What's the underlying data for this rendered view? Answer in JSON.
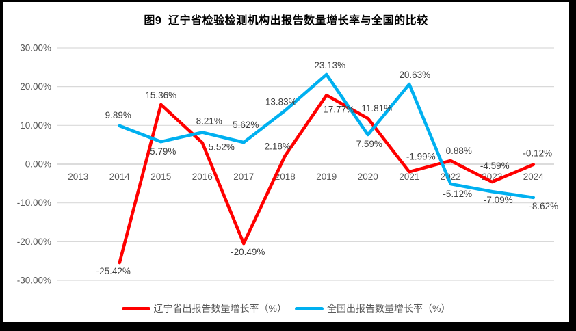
{
  "chart_data": {
    "type": "line",
    "title": "图9  辽宁省检验检测机构出报告数量增长率与全国的比较",
    "categories": [
      "2013",
      "2014",
      "2015",
      "2016",
      "2017",
      "2018",
      "2019",
      "2020",
      "2021",
      "2022",
      "2023",
      "2024"
    ],
    "y_axis": {
      "min": -30,
      "max": 30,
      "tick_step": 10,
      "ticks": [
        30,
        20,
        10,
        0,
        -10,
        -20,
        -30
      ],
      "tick_format": "0.00%"
    },
    "grid": true,
    "legend_position": "bottom",
    "colors": {
      "grid": "#D9D9D9",
      "zero_line": "#C6C6C6",
      "axis_text": "#595959",
      "data_label_text": "#404040",
      "frame": "#000000",
      "background": "#FFFFFF"
    },
    "series": [
      {
        "id": "liaoning",
        "name": "辽宁省出报告数量增长率（%）",
        "color": "#FF0000",
        "values": [
          null,
          -25.42,
          15.36,
          5.52,
          -20.49,
          2.18,
          17.77,
          11.81,
          -1.99,
          0.88,
          -4.59,
          -0.12
        ],
        "label_offsets": [
          null,
          [
            -9,
            17
          ],
          [
            0,
            -9
          ],
          [
            28,
            11
          ],
          [
            6,
            17
          ],
          [
            -11,
            -9
          ],
          [
            18,
            25
          ],
          [
            13,
            -10
          ],
          [
            17,
            -18
          ],
          [
            12,
            -10
          ],
          [
            4,
            -19
          ],
          [
            6,
            -12
          ]
        ]
      },
      {
        "id": "national",
        "name": "全国出报告数量增长率（%）",
        "color": "#00B0F0",
        "values": [
          null,
          9.89,
          5.79,
          8.21,
          5.62,
          13.83,
          23.13,
          7.59,
          20.63,
          -5.12,
          -7.09,
          -8.62
        ],
        "label_offsets": [
          null,
          [
            -2,
            -11
          ],
          [
            3,
            19
          ],
          [
            10,
            -12
          ],
          [
            3,
            -21
          ],
          [
            -6,
            -8
          ],
          [
            5,
            -9
          ],
          [
            2,
            18
          ],
          [
            8,
            -9
          ],
          [
            10,
            19
          ],
          [
            9,
            17
          ],
          [
            15,
            17
          ]
        ]
      }
    ]
  }
}
